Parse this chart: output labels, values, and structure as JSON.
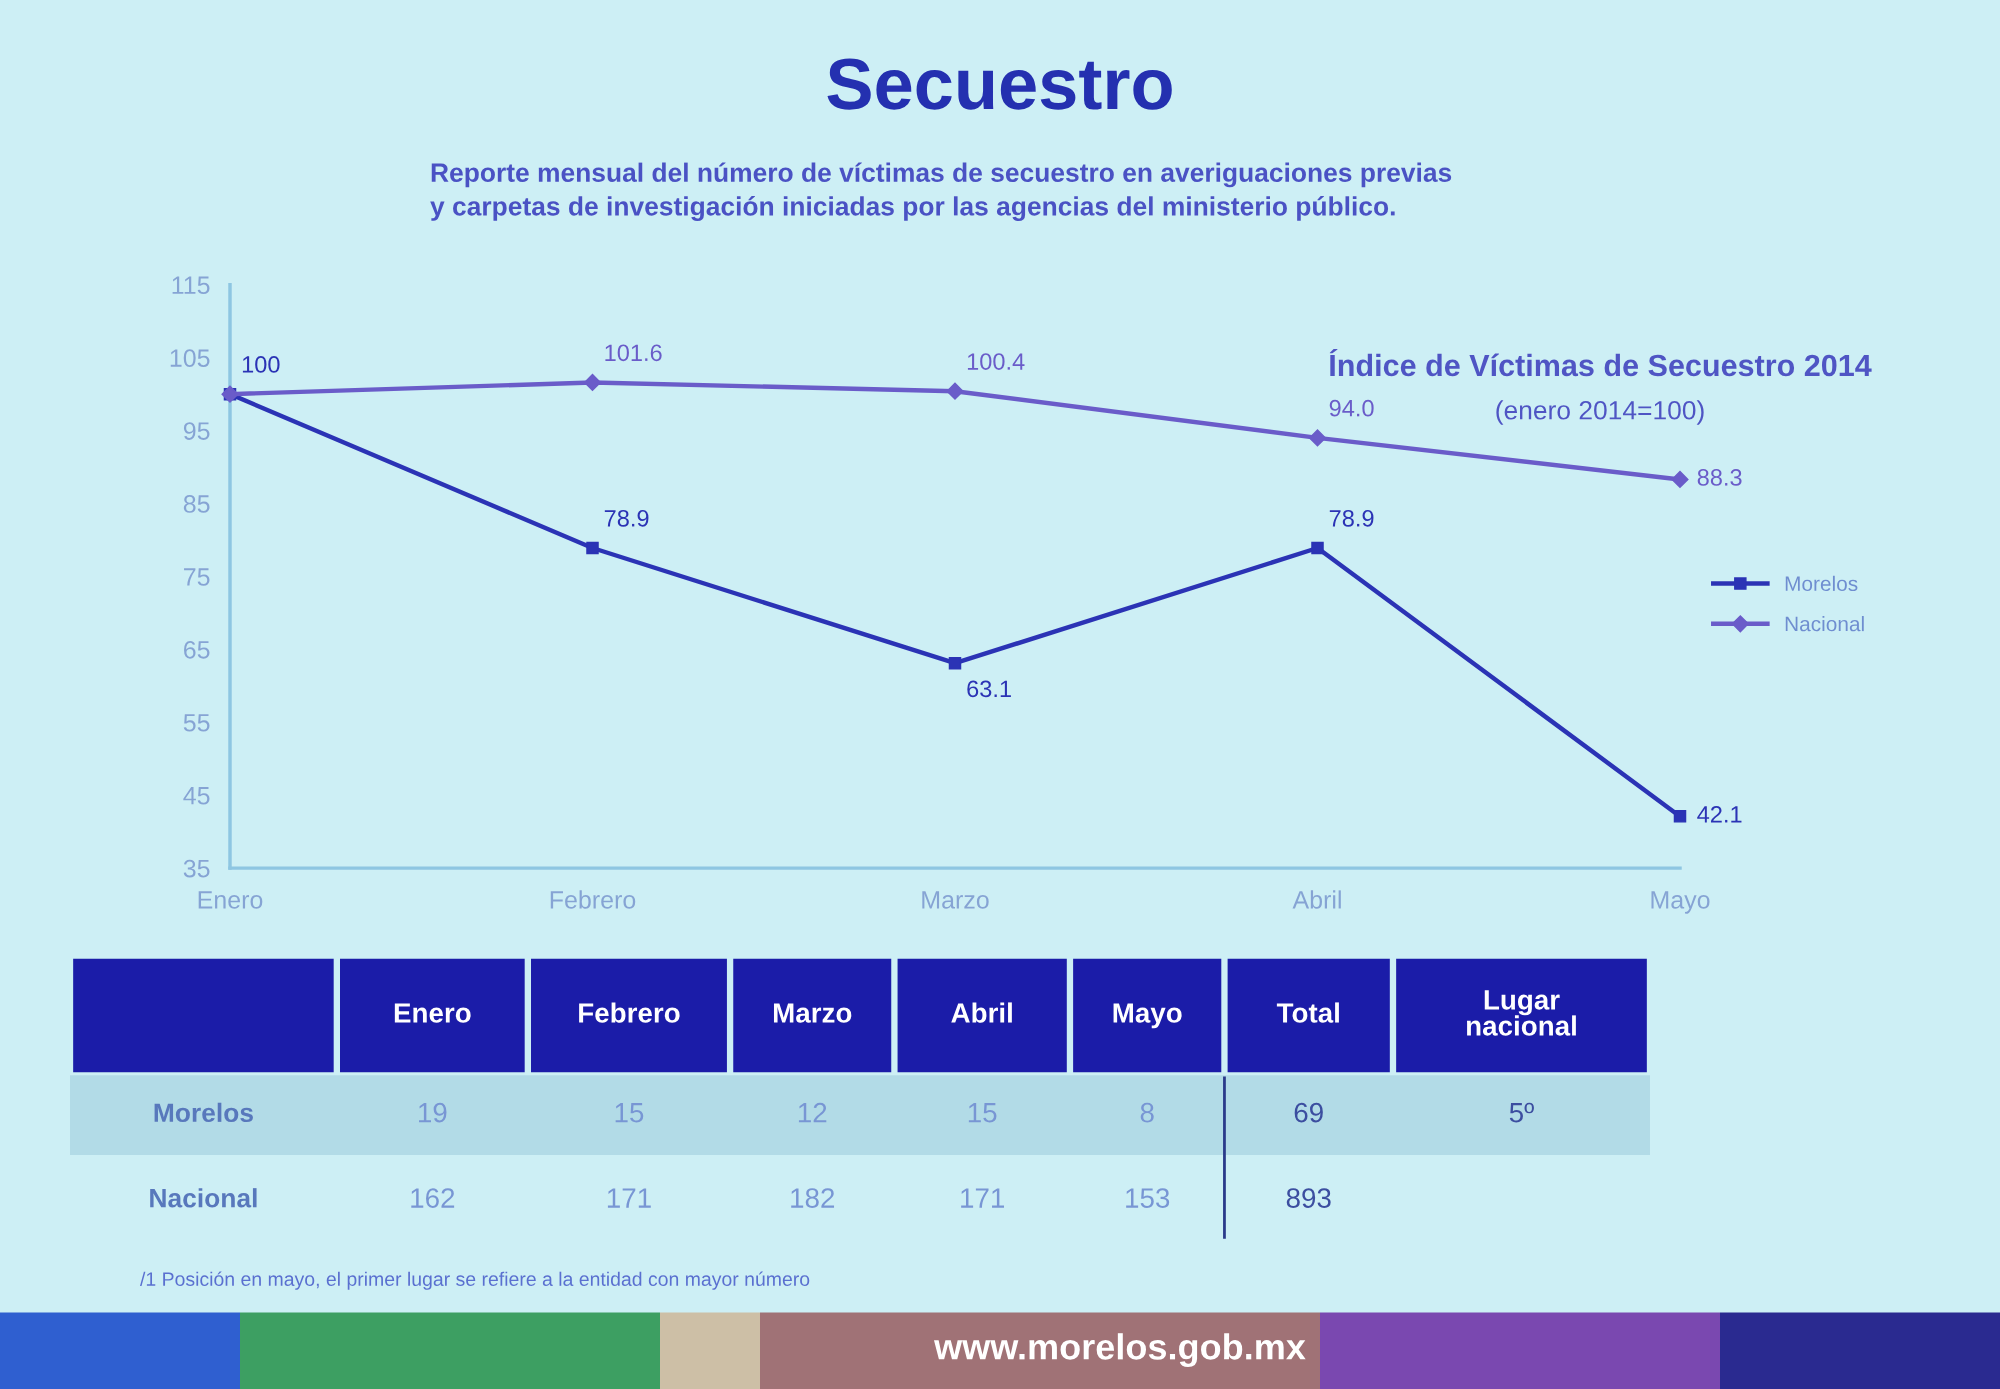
{
  "chart_data": [
    {
      "type": "line",
      "title": "Secuestro",
      "subtitle": "Reporte mensual del número de víctimas de secuestro en averiguaciones previas\ny carpetas de investigación iniciadas por las agencias del ministerio público.",
      "annotations": [
        "Índice de Víctimas de Secuestro 2014",
        "(enero 2014=100)"
      ],
      "categories": [
        "Enero",
        "Febrero",
        "Marzo",
        "Abril",
        "Mayo"
      ],
      "series": [
        {
          "name": "Morelos",
          "type": "line",
          "color": "#2b33b5",
          "marker": "square",
          "values": [
            100,
            78.9,
            63.1,
            78.9,
            42.1
          ],
          "value_labels": [
            "100",
            "78.9",
            "63.1",
            "78.9",
            "42.1"
          ]
        },
        {
          "name": "Nacional",
          "type": "line",
          "color": "#6a5cc9",
          "marker": "diamond",
          "values": [
            100,
            101.6,
            100.4,
            94.0,
            88.3
          ],
          "value_labels": [
            null,
            "101.6",
            "100.4",
            "94.0",
            "88.3"
          ]
        }
      ],
      "ylim": [
        35,
        115
      ],
      "yticks": [
        35,
        45,
        55,
        65,
        75,
        85,
        95,
        105,
        115
      ],
      "grid": false,
      "legend": "right",
      "line_style": "solid"
    },
    {
      "type": "other",
      "categories": [
        "Enero",
        "Febrero",
        "Marzo",
        "Abril",
        "Mayo",
        "Total",
        "Lugar\nnacional"
      ],
      "series": [
        {
          "name": "Morelos",
          "values": [
            19,
            15,
            12,
            15,
            8,
            69,
            5
          ],
          "value_labels": [
            "19",
            "15",
            "12",
            "15",
            "8",
            "69",
            "5º"
          ]
        },
        {
          "name": "Nacional",
          "values": [
            162,
            171,
            182,
            171,
            153,
            893,
            null
          ],
          "value_labels": [
            "162",
            "171",
            "182",
            "171",
            "153",
            "893",
            null
          ]
        }
      ],
      "annotations": [
        "/1 Posición en mayo, el primer lugar se refiere a la entidad con mayor número",
        "www.morelos.gob.mx"
      ]
    }
  ]
}
